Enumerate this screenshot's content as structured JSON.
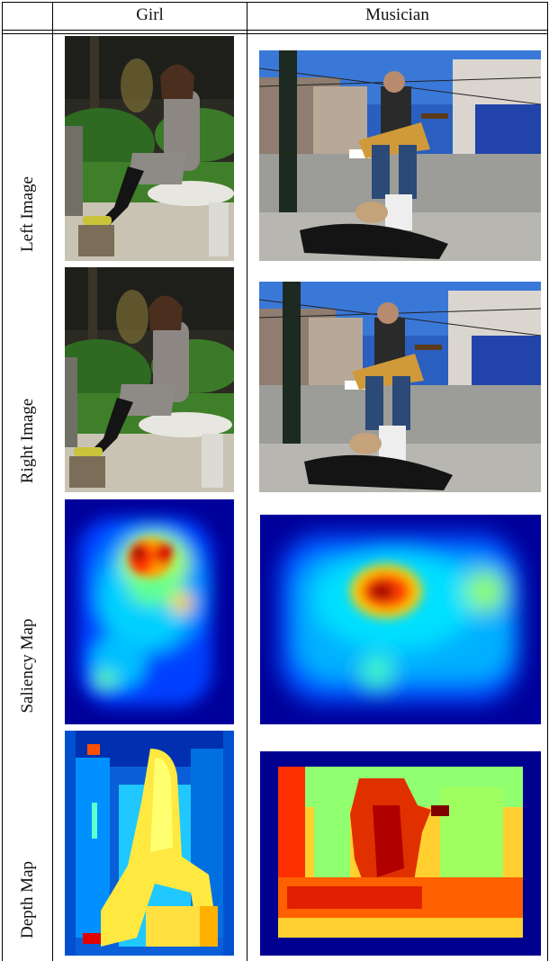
{
  "table": {
    "columns": [
      "Girl",
      "Musician"
    ],
    "rows": [
      "Left Image",
      "Right Image",
      "Saliency Map",
      "Depth Map"
    ]
  },
  "colors": {
    "jet_dark_blue": "#00008f",
    "jet_blue": "#0060ff",
    "jet_cyan": "#00e0ff",
    "jet_yellow": "#ffff40",
    "jet_orange": "#ff8000",
    "jet_red": "#d00000",
    "jet_dark_red": "#800000"
  }
}
